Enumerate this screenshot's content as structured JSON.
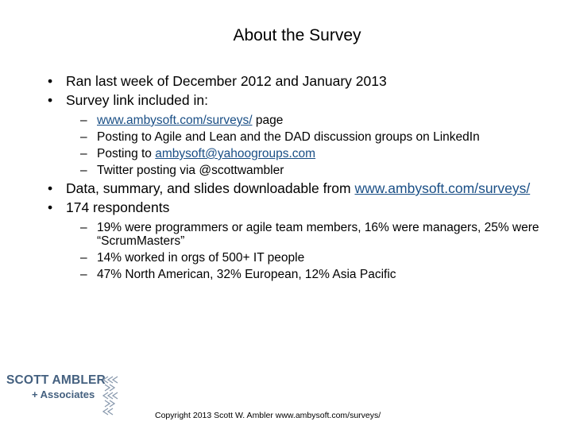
{
  "slide": {
    "title": "About the Survey",
    "bullets": [
      {
        "text": "Ran last week of December 2012 and January 2013"
      },
      {
        "text": "Survey link included in:",
        "sub": [
          {
            "link": "www.ambysoft.com/surveys/",
            "after": " page"
          },
          {
            "text": "Posting to Agile and Lean and the DAD discussion groups on LinkedIn"
          },
          {
            "before": "Posting to ",
            "link": "ambysoft@yahoogroups.com"
          },
          {
            "text": "Twitter posting via @scottwambler"
          }
        ]
      },
      {
        "before": "Data, summary, and slides downloadable from ",
        "link": "www.ambysoft.com/surveys/"
      },
      {
        "text": "174 respondents",
        "sub": [
          {
            "text": "19% were programmers or agile team members, 16% were managers, 25% were “ScrumMasters”"
          },
          {
            "text": "14% worked in orgs of 500+ IT people"
          },
          {
            "text": "47% North American, 32% European, 12% Asia Pacific"
          }
        ]
      }
    ],
    "bullet_symbol": "•",
    "sub_bullet_symbol": "–"
  },
  "logo": {
    "name": "SCOTT AMBLER",
    "plus": "+",
    "sub": "Associates"
  },
  "footer": {
    "copyright": "Copyright 2013 Scott W. Ambler www.ambysoft.com/surveys/"
  },
  "colors": {
    "link": "#1a4f86",
    "logo": "#44607f"
  }
}
